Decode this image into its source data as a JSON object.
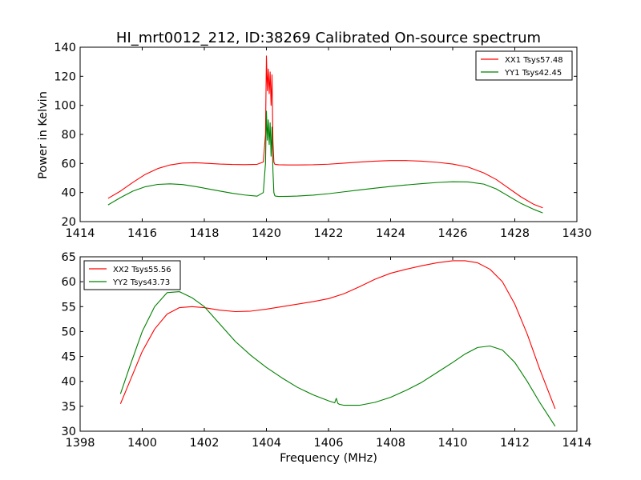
{
  "title": "HI_mrt0012_212, ID:38269 Calibrated On-source spectrum",
  "ylabel": "Power in Kelvin",
  "xlabel": "Frequency (MHz)",
  "colors": {
    "red": "#ff0000",
    "green": "#008000"
  },
  "chart_data": [
    {
      "type": "line",
      "xlim": [
        1414,
        1430
      ],
      "ylim": [
        20,
        140
      ],
      "xticks": [
        "1414",
        "1416",
        "1418",
        "1420",
        "1422",
        "1424",
        "1426",
        "1428",
        "1430"
      ],
      "yticks": [
        "20",
        "40",
        "60",
        "80",
        "100",
        "120",
        "140"
      ],
      "grid": false,
      "legend_position": "top-right",
      "series": [
        {
          "name": "XX1 Tsys57.48",
          "color": "#ff0000",
          "x": [
            1414.9,
            1415.3,
            1415.7,
            1416.1,
            1416.5,
            1416.9,
            1417.3,
            1417.7,
            1418.1,
            1418.5,
            1418.9,
            1419.3,
            1419.7,
            1419.9,
            1419.97,
            1420.0,
            1420.03,
            1420.06,
            1420.09,
            1420.12,
            1420.15,
            1420.18,
            1420.21,
            1420.24,
            1420.27,
            1420.3,
            1420.4,
            1420.7,
            1421.0,
            1421.5,
            1422.0,
            1422.5,
            1423.0,
            1423.5,
            1424.0,
            1424.5,
            1425.0,
            1425.5,
            1426.0,
            1426.5,
            1427.0,
            1427.4,
            1427.8,
            1428.2,
            1428.6,
            1428.9
          ],
          "y": [
            36,
            41,
            47,
            52.5,
            56.5,
            59,
            60.3,
            60.5,
            60.1,
            59.6,
            59.3,
            59.2,
            59.4,
            61,
            80,
            134,
            110,
            125,
            108,
            123,
            100,
            121,
            75,
            61,
            59.5,
            59.3,
            59.1,
            59.0,
            59.0,
            59.1,
            59.5,
            60.2,
            61.0,
            61.6,
            62.0,
            62.0,
            61.6,
            60.8,
            59.6,
            57.5,
            53.5,
            49,
            43,
            37,
            32,
            29.5
          ]
        },
        {
          "name": "YY1 Tsys42.45",
          "color": "#008000",
          "x": [
            1414.9,
            1415.3,
            1415.7,
            1416.1,
            1416.5,
            1416.9,
            1417.3,
            1417.7,
            1418.1,
            1418.5,
            1418.9,
            1419.3,
            1419.7,
            1419.9,
            1419.97,
            1420.0,
            1420.03,
            1420.06,
            1420.09,
            1420.12,
            1420.15,
            1420.18,
            1420.21,
            1420.24,
            1420.27,
            1420.3,
            1420.4,
            1420.7,
            1421.0,
            1421.5,
            1422.0,
            1422.5,
            1423.0,
            1423.5,
            1424.0,
            1424.5,
            1425.0,
            1425.5,
            1426.0,
            1426.5,
            1427.0,
            1427.4,
            1427.8,
            1428.2,
            1428.6,
            1428.9
          ],
          "y": [
            31.5,
            36.5,
            41,
            44,
            45.6,
            46,
            45.5,
            44.2,
            42.6,
            41,
            39.5,
            38.3,
            37.5,
            40,
            60,
            96,
            76,
            90,
            73,
            88,
            65,
            85,
            55,
            40,
            37.8,
            37.5,
            37.3,
            37.4,
            37.6,
            38.2,
            39.2,
            40.5,
            41.8,
            43.0,
            44.2,
            45.2,
            46.1,
            46.9,
            47.4,
            47.3,
            45.8,
            42.5,
            37.5,
            32.5,
            28.5,
            26
          ]
        }
      ]
    },
    {
      "type": "line",
      "xlim": [
        1398,
        1414
      ],
      "ylim": [
        30,
        65
      ],
      "xticks": [
        "1398",
        "1400",
        "1402",
        "1404",
        "1406",
        "1408",
        "1410",
        "1412",
        "1414"
      ],
      "yticks": [
        "30",
        "35",
        "40",
        "45",
        "50",
        "55",
        "60",
        "65"
      ],
      "grid": false,
      "legend_position": "top-left",
      "series": [
        {
          "name": "XX2 Tsys55.56",
          "color": "#ff0000",
          "x": [
            1399.3,
            1399.6,
            1400.0,
            1400.4,
            1400.8,
            1401.2,
            1401.6,
            1402.0,
            1402.5,
            1403.0,
            1403.5,
            1404.0,
            1404.5,
            1405.0,
            1405.5,
            1406.0,
            1406.5,
            1407.0,
            1407.5,
            1408.0,
            1408.5,
            1409.0,
            1409.5,
            1410.0,
            1410.4,
            1410.8,
            1411.2,
            1411.6,
            1412.0,
            1412.4,
            1412.8,
            1413.3
          ],
          "y": [
            35.5,
            40,
            46,
            50.5,
            53.5,
            54.8,
            55.0,
            54.8,
            54.3,
            54.0,
            54.1,
            54.5,
            55.0,
            55.5,
            56.0,
            56.6,
            57.6,
            59.0,
            60.5,
            61.7,
            62.5,
            63.2,
            63.8,
            64.2,
            64.2,
            63.8,
            62.5,
            60.0,
            55.5,
            49.5,
            42.5,
            34.5
          ]
        },
        {
          "name": "YY2 Tsys43.73",
          "color": "#008000",
          "x": [
            1399.3,
            1399.6,
            1400.0,
            1400.4,
            1400.8,
            1401.2,
            1401.6,
            1402.0,
            1402.5,
            1403.0,
            1403.5,
            1404.0,
            1404.5,
            1405.0,
            1405.5,
            1406.0,
            1406.2,
            1406.25,
            1406.3,
            1406.35,
            1406.5,
            1407.0,
            1407.5,
            1408.0,
            1408.5,
            1409.0,
            1409.5,
            1410.0,
            1410.4,
            1410.8,
            1411.2,
            1411.6,
            1412.0,
            1412.4,
            1412.8,
            1413.3
          ],
          "y": [
            37.5,
            43,
            50,
            55,
            57.8,
            58,
            56.8,
            55.0,
            51.5,
            48.0,
            45.2,
            42.8,
            40.7,
            38.8,
            37.3,
            36.1,
            35.7,
            36.6,
            35.6,
            35.4,
            35.2,
            35.2,
            35.8,
            36.8,
            38.2,
            39.8,
            41.8,
            43.8,
            45.5,
            46.8,
            47.1,
            46.3,
            43.8,
            40.0,
            35.8,
            31.0
          ]
        }
      ]
    }
  ]
}
